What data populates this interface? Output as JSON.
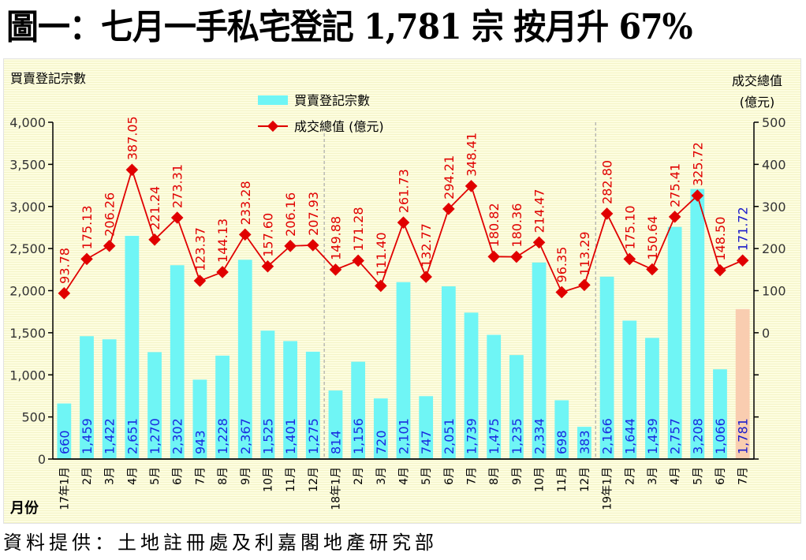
{
  "header": {
    "title": "圖一：七月一手私宅登記 1,781 宗  按月升 67%"
  },
  "footer": {
    "source": "資料提供：土地註冊處及利嘉閣地產研究部"
  },
  "colors": {
    "bar": "#6ff5f5",
    "bar_highlight": "#f9cdb0",
    "line": "#e00000",
    "line_label": "#e00000",
    "bar_label": "#1a2ae0",
    "highlight_label": "#1a1acc",
    "axis": "#000000",
    "tick_label": "#333333",
    "divider": "#aaaaaa"
  },
  "chart_data": {
    "type": "bar+line",
    "title": "圖一：七月一手私宅登記 1,781 宗  按月升 67%",
    "xlabel": "月份",
    "ylabel_left": "買賣登記宗數",
    "ylabel_right": [
      "成交總值",
      "(億元)"
    ],
    "categories": [
      "17年1月",
      "2月",
      "3月",
      "4月",
      "5月",
      "6月",
      "7月",
      "8月",
      "9月",
      "10月",
      "11月",
      "12月",
      "18年1月",
      "2月",
      "3月",
      "4月",
      "5月",
      "6月",
      "7月",
      "8月",
      "9月",
      "10月",
      "11月",
      "12月",
      "19年1月",
      "2月",
      "3月",
      "4月",
      "5月",
      "6月",
      "7月"
    ],
    "year_dividers_before_index": [
      12,
      24
    ],
    "highlight_index": 30,
    "series": [
      {
        "name": "買賣登記宗數",
        "type": "bar",
        "axis": "left",
        "values": [
          660,
          1459,
          1422,
          2651,
          1270,
          2302,
          943,
          1228,
          2367,
          1525,
          1401,
          1275,
          814,
          1156,
          720,
          2101,
          747,
          2051,
          1739,
          1475,
          1235,
          2334,
          698,
          383,
          2166,
          1644,
          1439,
          2757,
          3208,
          1066,
          1781
        ],
        "labels": [
          "660",
          "1,459",
          "1,422",
          "2,651",
          "1,270",
          "2,302",
          "943",
          "1,228",
          "2,367",
          "1,525",
          "1,401",
          "1,275",
          "814",
          "1,156",
          "720",
          "2,101",
          "747",
          "2,051",
          "1,739",
          "1,475",
          "1,235",
          "2,334",
          "698",
          "383",
          "2,166",
          "1,644",
          "1,439",
          "2,757",
          "3,208",
          "1,066",
          "1,781"
        ]
      },
      {
        "name": "成交總值 (億元)",
        "type": "line",
        "axis": "right",
        "marker": "diamond",
        "values": [
          93.78,
          175.13,
          206.26,
          387.05,
          221.24,
          273.31,
          123.37,
          144.13,
          233.28,
          157.6,
          206.16,
          207.93,
          149.88,
          171.28,
          111.4,
          261.73,
          132.77,
          294.21,
          348.41,
          180.82,
          180.36,
          214.47,
          96.35,
          113.29,
          282.8,
          175.1,
          150.64,
          275.41,
          325.72,
          148.5,
          171.72
        ],
        "labels": [
          "93.78",
          "175.13",
          "206.26",
          "387.05",
          "221.24",
          "273.31",
          "123.37",
          "144.13",
          "233.28",
          "157.60",
          "206.16",
          "207.93",
          "149.88",
          "171.28",
          "111.40",
          "261.73",
          "132.77",
          "294.21",
          "348.41",
          "180.82",
          "180.36",
          "214.47",
          "96.35",
          "113.29",
          "282.80",
          "175.10",
          "150.64",
          "275.41",
          "325.72",
          "148.50",
          "171.72"
        ]
      }
    ],
    "y_left": {
      "range": [
        0,
        4000
      ],
      "ticks": [
        "0",
        "500",
        "1,000",
        "1,500",
        "2,000",
        "2,500",
        "3,000",
        "3,500",
        "4,000"
      ]
    },
    "y_right": {
      "range": [
        -300,
        500
      ],
      "tick_labels": [
        "0",
        "100",
        "200",
        "300",
        "400",
        "500"
      ],
      "tick_count": 9
    },
    "legend": {
      "position": "top-center",
      "entries": [
        "買賣登記宗數",
        "成交總值 (億元)"
      ]
    },
    "grid": false
  }
}
